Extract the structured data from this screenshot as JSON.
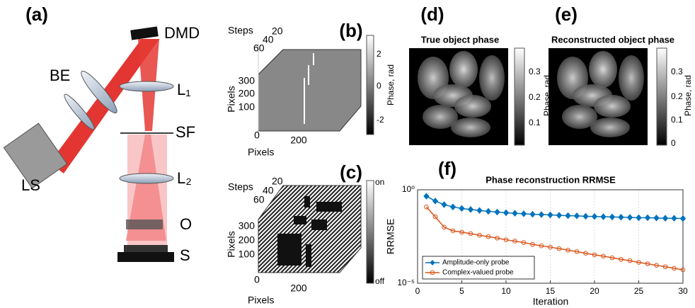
{
  "panels": {
    "a": {
      "label": "(a)",
      "dmd": "DMD",
      "be": "BE",
      "l1": "L₁",
      "sf": "SF",
      "l2": "L₂",
      "o": "O",
      "s": "S",
      "ls": "LS"
    },
    "b": {
      "label": "(b)",
      "steps_label": "Steps",
      "y_label": "Pixels",
      "x_label": "Pixels",
      "steps_ticks": [
        "20",
        "40",
        "60"
      ],
      "y_ticks": [
        "300",
        "200",
        "100"
      ],
      "x_ticks": [
        "0",
        "200"
      ],
      "colorbar_label": "Phase, rad",
      "colorbar_ticks": [
        "2",
        "0",
        "-2"
      ]
    },
    "c": {
      "label": "(c)",
      "steps_label": "Steps",
      "y_label": "Pixels",
      "x_label": "Pixels",
      "steps_ticks": [
        "20",
        "40",
        "60"
      ],
      "y_ticks": [
        "300",
        "200",
        "100"
      ],
      "x_ticks": [
        "0",
        "200"
      ],
      "colorbar_ticks": [
        "on",
        "off"
      ]
    },
    "d": {
      "label": "(d)",
      "title": "True object phase",
      "colorbar_label": "Phase, rad",
      "colorbar_ticks": [
        "0.3",
        "0.2",
        "0.1"
      ]
    },
    "e": {
      "label": "(e)",
      "title": "Reconstructed object phase",
      "colorbar_label": "Phase, rad",
      "colorbar_ticks": [
        "0.3",
        "0.2",
        "0.1",
        "0"
      ]
    }
  },
  "chart_data": {
    "type": "line",
    "panel_label": "(f)",
    "title": "Phase reconstruction RRMSE",
    "x_label": "Iteration",
    "y_label": "RRMSE",
    "x": [
      1,
      2,
      3,
      4,
      5,
      6,
      7,
      8,
      9,
      10,
      11,
      12,
      13,
      14,
      15,
      16,
      17,
      18,
      19,
      20,
      21,
      22,
      23,
      24,
      25,
      26,
      27,
      28,
      29,
      30
    ],
    "xlim": [
      0,
      30
    ],
    "xticks": [
      0,
      5,
      10,
      15,
      20,
      25,
      30
    ],
    "ylim": [
      1e-05,
      1
    ],
    "yticks": [
      {
        "value": 1,
        "label": "10⁰"
      },
      {
        "value": 1e-05,
        "label": "10⁻⁵"
      }
    ],
    "log_y": true,
    "grid": true,
    "legend": "lower left",
    "series": [
      {
        "name": "Amplitude-only probe",
        "color": "#0072bd",
        "marker": "diamond",
        "values": [
          0.45,
          0.25,
          0.16,
          0.12,
          0.1,
          0.088,
          0.078,
          0.07,
          0.064,
          0.059,
          0.055,
          0.052,
          0.049,
          0.047,
          0.045,
          0.043,
          0.041,
          0.04,
          0.038,
          0.037,
          0.036,
          0.035,
          0.034,
          0.033,
          0.032,
          0.032,
          0.031,
          0.03,
          0.03,
          0.029
        ]
      },
      {
        "name": "Complex-valued probe",
        "color": "#d95319",
        "marker": "circle",
        "values": [
          0.12,
          0.036,
          0.01,
          0.0063,
          0.0054,
          0.0045,
          0.0037,
          0.0031,
          0.0026,
          0.0021,
          0.0018,
          0.0015,
          0.0012,
          0.001,
          0.00085,
          0.00071,
          0.00059,
          0.00049,
          0.0004,
          0.00033,
          0.00028,
          0.00023,
          0.00019,
          0.00016,
          0.00013,
          0.00011,
          9.1e-05,
          7.6e-05,
          6.3e-05,
          5.2e-05
        ]
      }
    ]
  }
}
